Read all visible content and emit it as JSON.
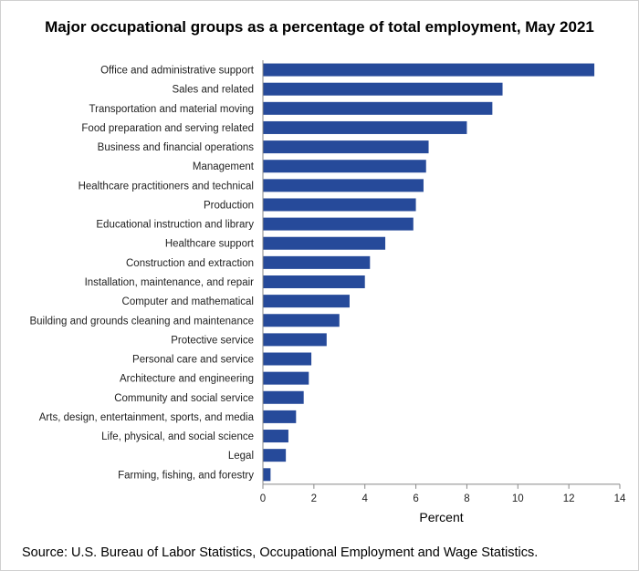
{
  "chart_data": {
    "type": "bar",
    "orientation": "horizontal",
    "title": "Major occupational groups as a percentage of total employment,  May 2021",
    "xlabel": "Percent",
    "ylabel": "",
    "xlim": [
      0,
      14
    ],
    "xticks": [
      0,
      2,
      4,
      6,
      8,
      10,
      12,
      14
    ],
    "grid": false,
    "legend": "none",
    "bar_color": "#264a9a",
    "categories": [
      "Office and administrative support",
      "Sales and related",
      "Transportation and material moving",
      "Food preparation and serving related",
      "Business and financial operations",
      "Management",
      "Healthcare practitioners and technical",
      "Production",
      "Educational instruction and library",
      "Healthcare support",
      "Construction and extraction",
      "Installation, maintenance, and repair",
      "Computer and mathematical",
      "Building and grounds cleaning and maintenance",
      "Protective service",
      "Personal care and service",
      "Architecture and engineering",
      "Community and social service",
      "Arts, design, entertainment, sports, and media",
      "Life, physical, and social science",
      "Legal",
      "Farming, fishing, and forestry"
    ],
    "values": [
      13.0,
      9.4,
      9.0,
      8.0,
      6.5,
      6.4,
      6.3,
      6.0,
      5.9,
      4.8,
      4.2,
      4.0,
      3.4,
      3.0,
      2.5,
      1.9,
      1.8,
      1.6,
      1.3,
      1.0,
      0.9,
      0.3
    ]
  },
  "source": "Source: U.S. Bureau of Labor Statistics, Occupational Employment  and Wage Statistics."
}
